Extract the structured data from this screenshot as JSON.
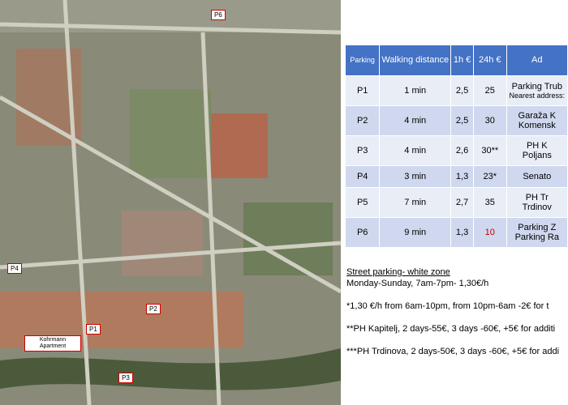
{
  "map": {
    "labels": [
      {
        "text": "P6"
      },
      {
        "text": "P4"
      },
      {
        "text": "P2"
      },
      {
        "text": "P1"
      },
      {
        "text": "Kohrmann Apartment"
      },
      {
        "text": "P3"
      }
    ]
  },
  "table": {
    "header": [
      "Parking",
      "Walking distance",
      "1h €",
      "24h €",
      "Ad"
    ],
    "rows": [
      [
        "P1",
        "1 min",
        "2,5",
        "25",
        "Parking Trub",
        "Nearest address:"
      ],
      [
        "P2",
        "4 min",
        "2,5",
        "30",
        "Garaža K",
        "Komensk"
      ],
      [
        "P3",
        "4 min",
        "2,6",
        "30**",
        "PH K",
        "Poljans"
      ],
      [
        "P4",
        "3 min",
        "1,3",
        "23*",
        "Senato",
        ""
      ],
      [
        "P5",
        "7 min",
        "2,7",
        "35",
        "PH Tr",
        "Trdinov"
      ],
      [
        "P6",
        "9 min",
        "1,3",
        "10",
        "Parking Z",
        "Parking Ra"
      ]
    ]
  },
  "notes": {
    "title": "Street parking- white zone",
    "lines": [
      "Monday-Sunday, 7am-7pm- 1,30€/h",
      "*1,30 €/h from 6am-10pm, from 10pm-6am -2€ for t",
      "**PH Kapitelj, 2 days-55€, 3 days -60€, +5€ for additi",
      "***PH Trdinova, 2 days-50€, 3 days -60€, +5€ for addi"
    ]
  }
}
